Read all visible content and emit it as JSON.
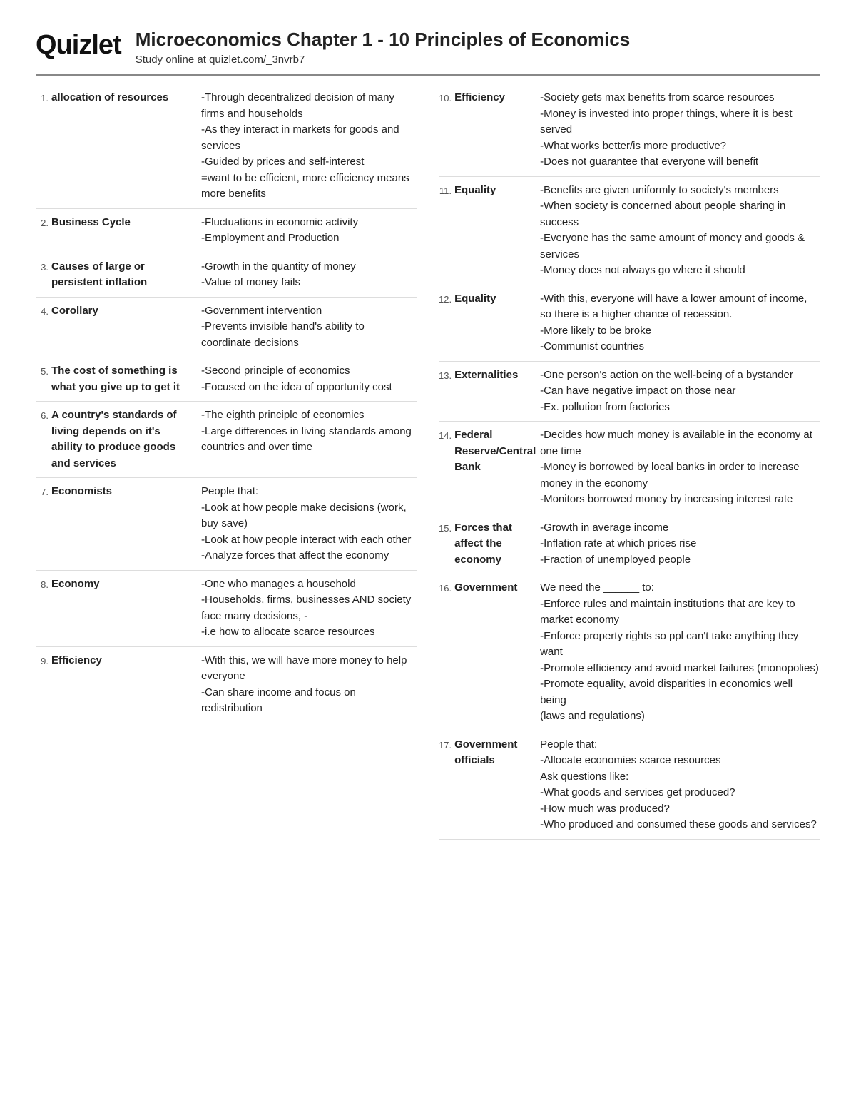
{
  "header": {
    "logo": "Quizlet",
    "title": "Microeconomics Chapter 1 - 10 Principles of Economics",
    "subtitle": "Study online at quizlet.com/_3nvrb7"
  },
  "left": [
    {
      "n": "1.",
      "term": "allocation of resources",
      "def": "-Through decentralized decision of many firms and households\n-As they interact in markets for goods and services\n-Guided by prices and self-interest\n=want to be efficient, more efficiency means more benefits"
    },
    {
      "n": "2.",
      "term": "Business Cycle",
      "def": "-Fluctuations in economic activity\n-Employment and Production"
    },
    {
      "n": "3.",
      "term": "Causes of large or persistent inflation",
      "def": "-Growth in the quantity of money\n-Value of money fails"
    },
    {
      "n": "4.",
      "term": "Corollary",
      "def": "-Government intervention\n-Prevents invisible hand's ability to coordinate decisions"
    },
    {
      "n": "5.",
      "term": "The cost of something is what you give up to get it",
      "def": "-Second principle of economics\n-Focused on the idea of opportunity cost"
    },
    {
      "n": "6.",
      "term": "A country's standards of living depends on it's ability to produce goods and services",
      "def": "-The eighth principle of economics\n-Large differences in living standards among countries and over time"
    },
    {
      "n": "7.",
      "term": "Economists",
      "def": "People that:\n-Look at how people make decisions (work, buy save)\n-Look at how people interact with each other\n-Analyze forces that affect the economy"
    },
    {
      "n": "8.",
      "term": "Economy",
      "def": "-One who manages a household\n-Households, firms, businesses AND society face many decisions, -\n-i.e how to allocate scarce resources"
    },
    {
      "n": "9.",
      "term": "Efficiency",
      "def": "-With this, we will have more money to help everyone\n-Can share income and focus on redistribution"
    }
  ],
  "right": [
    {
      "n": "10.",
      "term": "Efficiency",
      "def": "-Society gets max benefits from scarce resources\n-Money is invested into proper things, where it is best served\n-What works better/is more productive?\n-Does not guarantee that everyone will benefit"
    },
    {
      "n": "11.",
      "term": "Equality",
      "def": "-Benefits are given uniformly to society's members\n-When society is concerned about people sharing in success\n-Everyone has the same amount of money and goods & services\n-Money does not always go where it should"
    },
    {
      "n": "12.",
      "term": "Equality",
      "def": "-With this, everyone will have a lower amount of income, so there is a higher chance of recession.\n-More likely to be broke\n-Communist countries"
    },
    {
      "n": "13.",
      "term": "Externalities",
      "def": "-One person's action on the well-being of a bystander\n-Can have negative impact on those near\n-Ex. pollution from factories"
    },
    {
      "n": "14.",
      "term": "Federal Reserve/Central Bank",
      "def": "-Decides how much money is available in the economy at one time\n-Money is borrowed by local banks in order to increase money in the economy\n-Monitors borrowed money by increasing interest rate"
    },
    {
      "n": "15.",
      "term": "Forces that affect the economy",
      "def": "-Growth in average income\n-Inflation rate at which prices rise\n-Fraction of unemployed people"
    },
    {
      "n": "16.",
      "term": "Government",
      "def": "We need the ______ to:\n-Enforce rules and maintain institutions that are key to market economy\n-Enforce property rights so ppl can't take anything they want\n-Promote efficiency and avoid market failures (monopolies)\n-Promote equality, avoid disparities in economics well being\n(laws and regulations)"
    },
    {
      "n": "17.",
      "term": "Government officials",
      "def": "People that:\n-Allocate economies scarce resources\nAsk questions like:\n-What goods and services get produced?\n-How much was produced?\n-Who produced and consumed these goods and services?"
    }
  ]
}
